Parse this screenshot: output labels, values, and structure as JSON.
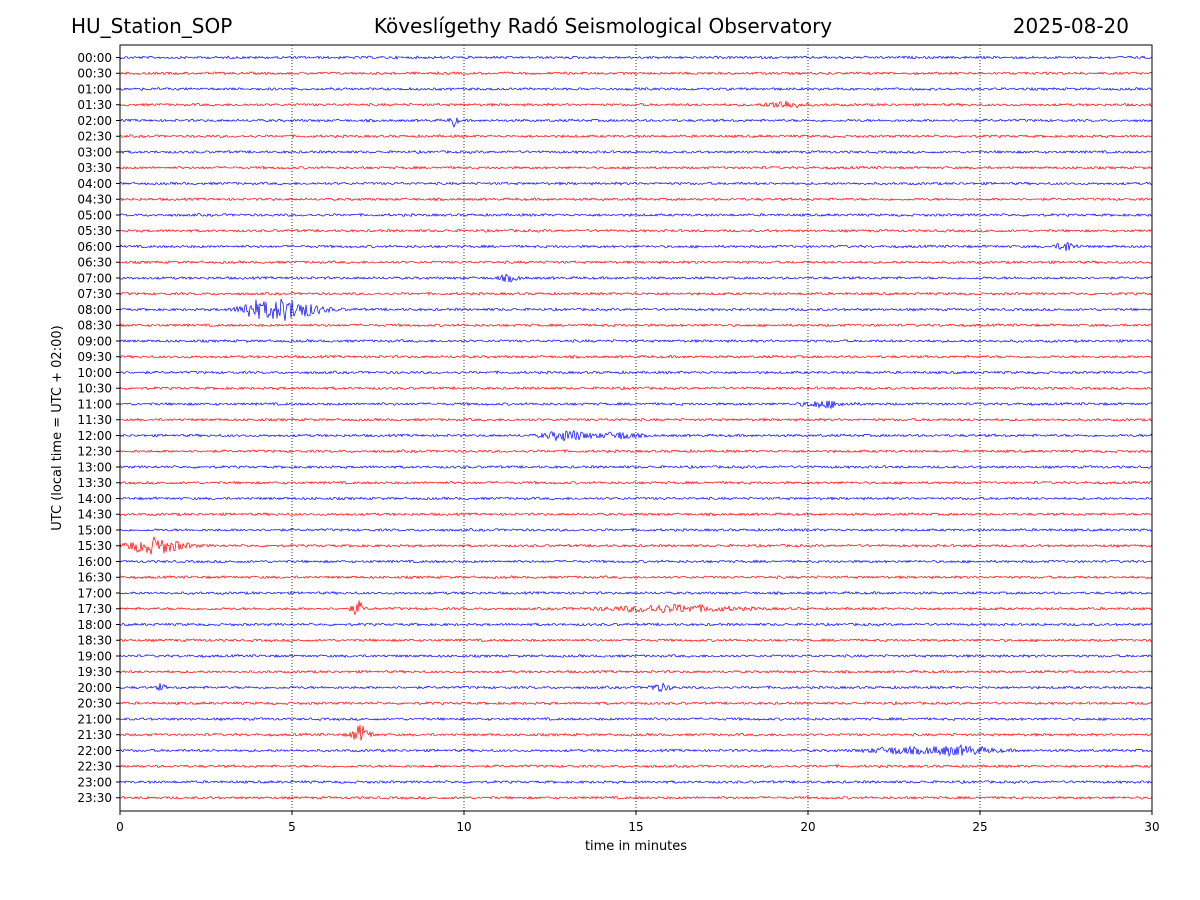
{
  "header": {
    "station": "HU_Station_SOP",
    "title": "Köveslígethy Radó Seismological Observatory",
    "date": "2025-08-20"
  },
  "colors": {
    "trace_a": "#0000ff",
    "trace_b": "#ff0000",
    "grid": "#000000"
  },
  "chart_data": {
    "type": "line",
    "title": "Köveslígethy Radó Seismological Observatory",
    "xlabel": "time in minutes",
    "ylabel": "UTC (local time = UTC + 02:00)",
    "xlim": [
      0,
      30
    ],
    "x_ticks": [
      0,
      5,
      10,
      15,
      20,
      25,
      30
    ],
    "vertical_gridlines_at": [
      5,
      10,
      15,
      20,
      25
    ],
    "row_labels": [
      "00:00",
      "00:30",
      "01:00",
      "01:30",
      "02:00",
      "02:30",
      "03:00",
      "03:30",
      "04:00",
      "04:30",
      "05:00",
      "05:30",
      "06:00",
      "06:30",
      "07:00",
      "07:30",
      "08:00",
      "08:30",
      "09:00",
      "09:30",
      "10:00",
      "10:30",
      "11:00",
      "11:30",
      "12:00",
      "12:30",
      "13:00",
      "13:30",
      "14:00",
      "14:30",
      "15:00",
      "15:30",
      "16:00",
      "16:30",
      "17:00",
      "17:30",
      "18:00",
      "18:30",
      "19:00",
      "19:30",
      "20:00",
      "20:30",
      "21:00",
      "21:30",
      "22:00",
      "22:30",
      "23:00",
      "23:30"
    ],
    "row_colors_cycle": [
      "#0000ff",
      "#ff0000"
    ],
    "events": [
      {
        "row": "01:30",
        "minute": 19.3,
        "amplitude": 0.35,
        "duration": 0.9
      },
      {
        "row": "02:00",
        "minute": 9.7,
        "amplitude": 0.55,
        "duration": 0.2
      },
      {
        "row": "06:00",
        "minute": 27.5,
        "amplitude": 0.45,
        "duration": 0.5
      },
      {
        "row": "07:00",
        "minute": 11.3,
        "amplitude": 0.25,
        "duration": 0.6
      },
      {
        "row": "08:00",
        "minute": 3.8,
        "amplitude": 0.55,
        "duration": 0.6
      },
      {
        "row": "08:00",
        "minute": 4.8,
        "amplitude": 0.95,
        "duration": 1.8
      },
      {
        "row": "11:00",
        "minute": 20.5,
        "amplitude": 0.3,
        "duration": 1.2
      },
      {
        "row": "12:00",
        "minute": 13.0,
        "amplitude": 0.45,
        "duration": 1.2
      },
      {
        "row": "12:00",
        "minute": 14.5,
        "amplitude": 0.3,
        "duration": 1.0
      },
      {
        "row": "15:30",
        "minute": 1.0,
        "amplitude": 0.7,
        "duration": 1.6
      },
      {
        "row": "17:30",
        "minute": 6.9,
        "amplitude": 0.7,
        "duration": 0.3
      },
      {
        "row": "17:30",
        "minute": 16.0,
        "amplitude": 0.3,
        "duration": 3.5
      },
      {
        "row": "20:00",
        "minute": 1.2,
        "amplitude": 0.35,
        "duration": 0.2
      },
      {
        "row": "20:00",
        "minute": 15.7,
        "amplitude": 0.3,
        "duration": 0.6
      },
      {
        "row": "21:30",
        "minute": 7.0,
        "amplitude": 0.8,
        "duration": 0.5
      },
      {
        "row": "22:00",
        "minute": 24.3,
        "amplitude": 0.4,
        "duration": 2.0
      },
      {
        "row": "22:00",
        "minute": 22.5,
        "amplitude": 0.25,
        "duration": 1.5
      }
    ]
  }
}
